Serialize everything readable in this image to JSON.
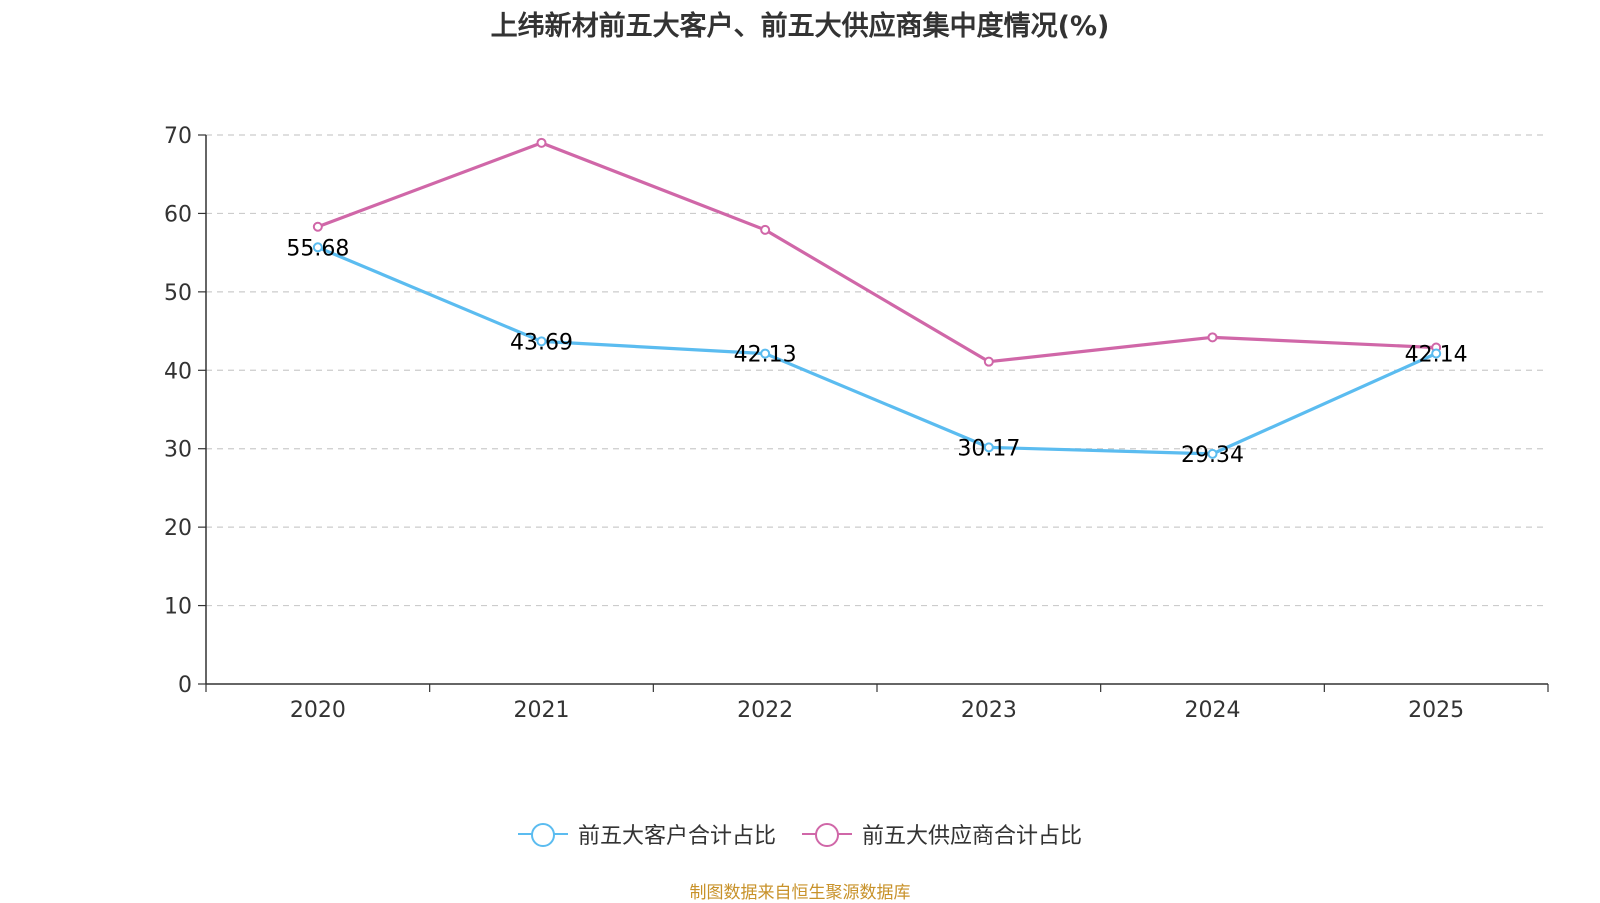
{
  "chart_data": {
    "type": "line",
    "title": "上纬新材前五大客户、前五大供应商集中度情况(%)",
    "categories": [
      "2020",
      "2021",
      "2022",
      "2023",
      "2024",
      "2025"
    ],
    "series": [
      {
        "name": "前五大客户合计占比",
        "color": "#5bbcf0",
        "values": [
          55.68,
          43.69,
          42.13,
          30.17,
          29.34,
          42.14
        ],
        "labels": [
          "55.68",
          "43.69",
          "42.13",
          "30.17",
          "29.34",
          "42.14"
        ]
      },
      {
        "name": "前五大供应商合计占比",
        "color": "#d067a8",
        "values": [
          58.3,
          69.0,
          57.9,
          41.1,
          44.2,
          42.9
        ]
      }
    ],
    "y_ticks": [
      "0",
      "10",
      "20",
      "30",
      "40",
      "50",
      "60",
      "70"
    ],
    "ylim": [
      0,
      70
    ],
    "grid": true,
    "legend": "bottom"
  },
  "source": "制图数据来自恒生聚源数据库"
}
